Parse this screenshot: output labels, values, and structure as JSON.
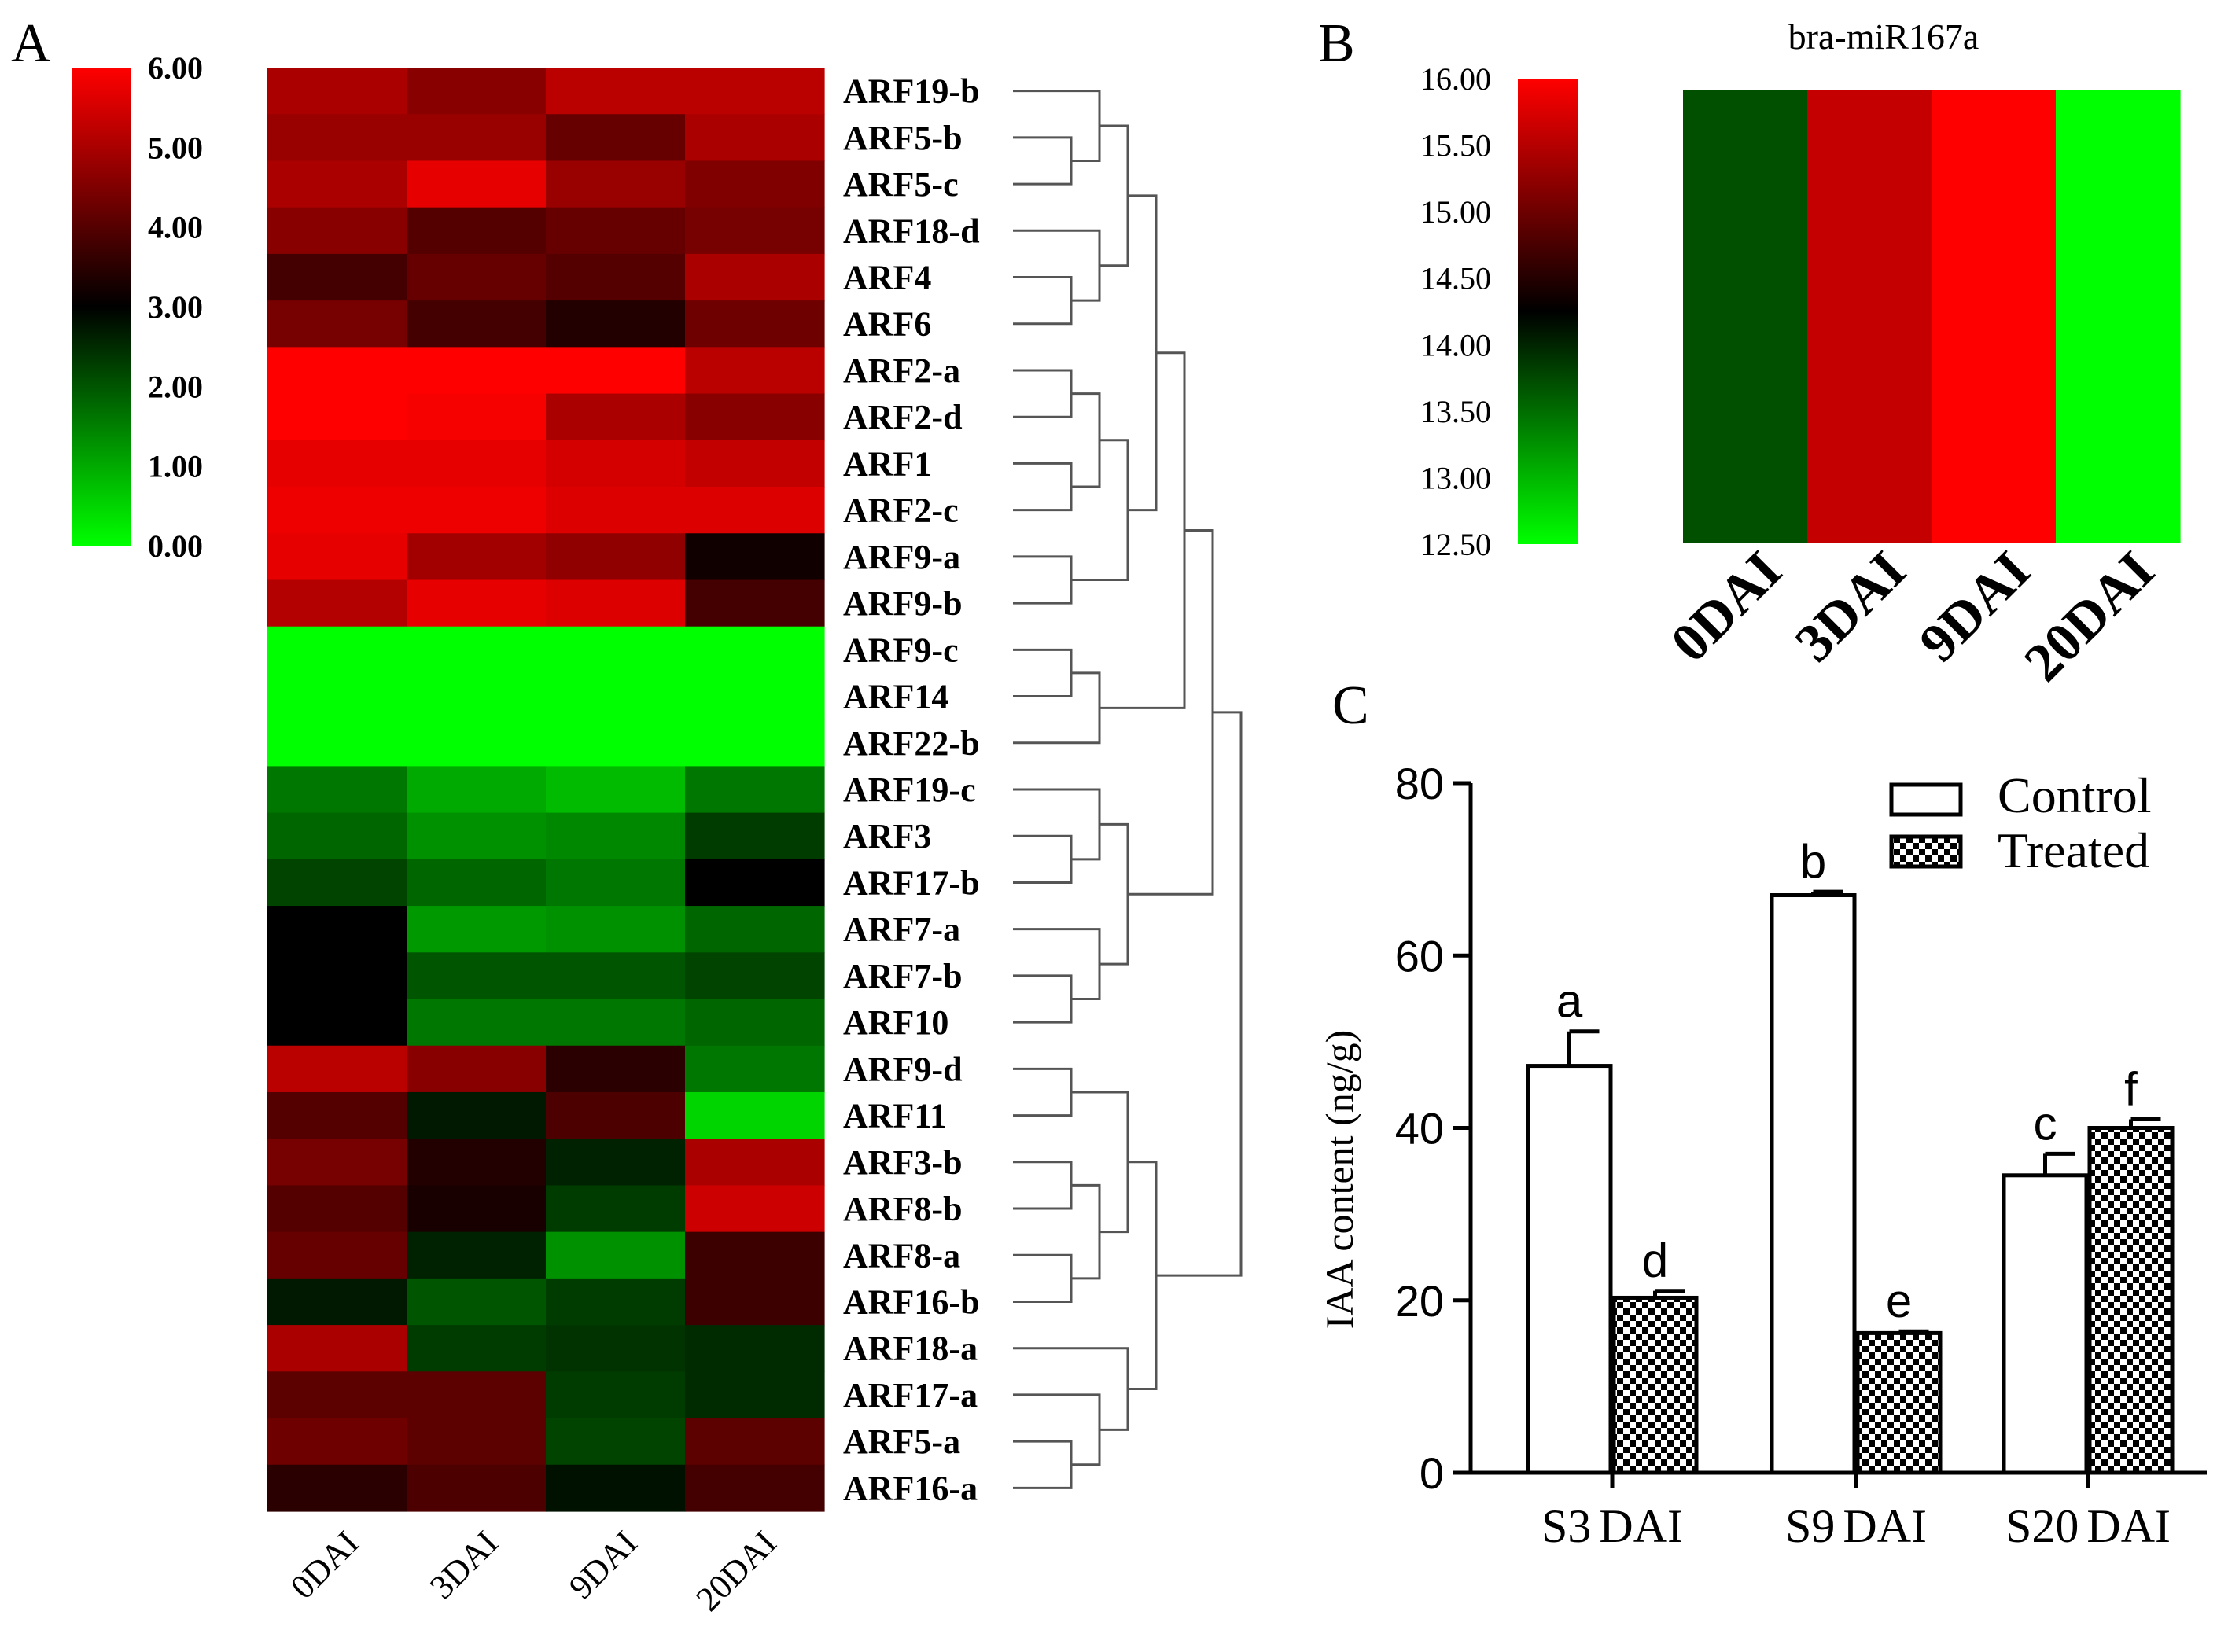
{
  "panels": {
    "a": "A",
    "b": "B",
    "c": "C"
  },
  "colors": {
    "low": "#00ff00",
    "mid": "#000000",
    "high": "#ff0000"
  },
  "chart_data": [
    {
      "type": "heatmap",
      "panel": "A",
      "columns": [
        "0DAI",
        "3DAI",
        "9DAI",
        "20DAI"
      ],
      "rows": [
        "ARF19-b",
        "ARF5-b",
        "ARF5-c",
        "ARF18-d",
        "ARF4",
        "ARF6",
        "ARF2-a",
        "ARF2-d",
        "ARF1",
        "ARF2-c",
        "ARF9-a",
        "ARF9-b",
        "ARF9-c",
        "ARF14",
        "ARF22-b",
        "ARF19-c",
        "ARF3",
        "ARF17-b",
        "ARF7-a",
        "ARF7-b",
        "ARF10",
        "ARF9-d",
        "ARF11",
        "ARF3-b",
        "ARF8-b",
        "ARF8-a",
        "ARF16-b",
        "ARF18-a",
        "ARF17-a",
        "ARF5-a",
        "ARF16-a"
      ],
      "values": [
        [
          5.0,
          4.6,
          5.2,
          5.2
        ],
        [
          4.8,
          4.8,
          4.2,
          5.0
        ],
        [
          5.0,
          5.7,
          4.8,
          4.5
        ],
        [
          4.6,
          4.0,
          4.2,
          4.4
        ],
        [
          3.8,
          4.2,
          4.0,
          5.0
        ],
        [
          4.4,
          3.8,
          3.4,
          4.3
        ],
        [
          6.0,
          6.0,
          6.0,
          5.2
        ],
        [
          6.0,
          5.9,
          5.0,
          4.6
        ],
        [
          5.7,
          5.7,
          5.5,
          5.3
        ],
        [
          5.8,
          5.8,
          5.6,
          5.6
        ],
        [
          5.7,
          4.9,
          4.7,
          3.2
        ],
        [
          5.1,
          5.7,
          5.6,
          3.8
        ],
        [
          0.0,
          0.0,
          0.0,
          0.0
        ],
        [
          0.0,
          0.0,
          0.0,
          0.0
        ],
        [
          0.0,
          0.0,
          0.0,
          0.0
        ],
        [
          1.6,
          1.0,
          0.8,
          1.6
        ],
        [
          1.8,
          1.3,
          1.4,
          2.3
        ],
        [
          2.2,
          1.8,
          1.6,
          3.0
        ],
        [
          3.0,
          1.2,
          1.3,
          1.8
        ],
        [
          3.0,
          2.0,
          2.0,
          2.2
        ],
        [
          3.0,
          1.6,
          1.6,
          1.8
        ],
        [
          5.2,
          4.6,
          3.5,
          1.6
        ],
        [
          4.0,
          2.7,
          3.9,
          0.5
        ],
        [
          4.4,
          3.4,
          2.6,
          5.0
        ],
        [
          4.0,
          3.3,
          2.3,
          5.4
        ],
        [
          4.2,
          2.6,
          1.3,
          3.7
        ],
        [
          2.7,
          2.0,
          2.3,
          3.7
        ],
        [
          5.0,
          2.3,
          2.4,
          2.5
        ],
        [
          4.1,
          4.1,
          2.3,
          2.5
        ],
        [
          4.3,
          4.1,
          2.2,
          4.1
        ],
        [
          3.5,
          3.9,
          2.8,
          3.8
        ]
      ],
      "scale": {
        "min": 0,
        "max": 6,
        "ticks": [
          "0.00",
          "1.00",
          "2.00",
          "3.00",
          "4.00",
          "5.00",
          "6.00"
        ]
      },
      "dendrogram": true
    },
    {
      "type": "heatmap",
      "panel": "B",
      "title": "bra-miR167a",
      "columns": [
        "0DAI",
        "3DAI",
        "9DAI",
        "20DAI"
      ],
      "values": [
        13.7,
        15.6,
        16.0,
        12.5
      ],
      "scale": {
        "min": 12.5,
        "max": 16.0,
        "ticks": [
          "12.50",
          "13.00",
          "13.50",
          "14.00",
          "14.50",
          "15.00",
          "15.50",
          "16.00"
        ]
      }
    },
    {
      "type": "bar",
      "panel": "C",
      "categories": [
        {
          "prefix": "S3",
          "suffix": "DAI"
        },
        {
          "prefix": "S9",
          "suffix": "DAI"
        },
        {
          "prefix": "S20",
          "suffix": "DAI"
        }
      ],
      "ylabel": "IAA content (ng/g)",
      "ylim": [
        0,
        80
      ],
      "yticks": [
        "0",
        "20",
        "40",
        "60",
        "80"
      ],
      "legend_position": "top-right",
      "series": [
        {
          "name": "Control",
          "fill": "white",
          "values": [
            47.2,
            67.0,
            34.5
          ],
          "errors": [
            4.0,
            0.4,
            2.5
          ],
          "letters": [
            "a",
            "b",
            "c"
          ]
        },
        {
          "name": "Treated",
          "fill": "checker",
          "values": [
            20.3,
            16.2,
            40.0
          ],
          "errors": [
            0.8,
            0.2,
            1.0
          ],
          "letters": [
            "d",
            "e",
            "f"
          ]
        }
      ]
    }
  ]
}
